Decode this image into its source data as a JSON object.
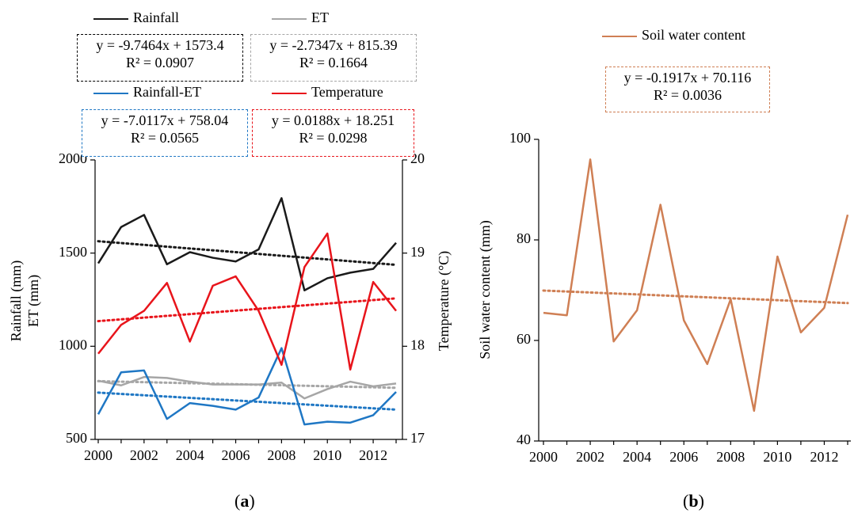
{
  "chart_data": [
    {
      "type": "line",
      "panel_label_open": "(",
      "panel_label_letter": "a",
      "panel_label_close": ")",
      "x": [
        2000,
        2001,
        2002,
        2003,
        2004,
        2005,
        2006,
        2007,
        2008,
        2009,
        2010,
        2011,
        2012,
        2013
      ],
      "xticks": [
        "2000",
        "2002",
        "2004",
        "2006",
        "2008",
        "2010",
        "2012"
      ],
      "xlim": [
        2000,
        2013
      ],
      "ylabel_primary_line1": "Rainfall (mm)",
      "ylabel_primary_line2": "ET (mm)",
      "ylim_primary": [
        500,
        2000
      ],
      "yticks_primary": [
        "500",
        "1000",
        "1500",
        "2000"
      ],
      "ylabel_secondary": "Temperature (°C)",
      "ylim_secondary": [
        17,
        20
      ],
      "yticks_secondary": [
        "17",
        "18",
        "19",
        "20"
      ],
      "legend_placement": "top",
      "grid": false,
      "series": [
        {
          "name": "Rainfall",
          "axis": "primary",
          "color": "#1a1a1a",
          "values": [
            1445,
            1640,
            1705,
            1440,
            1505,
            1475,
            1455,
            1520,
            1795,
            1300,
            1365,
            1395,
            1415,
            1555
          ],
          "trend_equation": "y = -9.7464x + 1573.4",
          "trend_r2": "R² = 0.0907",
          "trend_slope": -9.7464,
          "trend_intercept": 1573.4
        },
        {
          "name": "ET",
          "axis": "primary",
          "color": "#a6a6a6",
          "values": [
            815,
            790,
            835,
            830,
            810,
            795,
            795,
            795,
            805,
            720,
            770,
            810,
            785,
            800
          ],
          "trend_equation": "y = -2.7347x + 815.39",
          "trend_r2": "R² = 0.1664",
          "trend_slope": -2.7347,
          "trend_intercept": 815.39
        },
        {
          "name": "Rainfall-ET",
          "axis": "primary",
          "color": "#1f77c4",
          "values": [
            635,
            860,
            870,
            610,
            695,
            680,
            660,
            725,
            990,
            580,
            595,
            590,
            630,
            755
          ],
          "trend_equation": "y = -7.0117x + 758.04",
          "trend_r2": "R² = 0.0565",
          "trend_slope": -7.0117,
          "trend_intercept": 758.04
        },
        {
          "name": "Temperature",
          "axis": "secondary",
          "color": "#e8141b",
          "values": [
            17.92,
            18.23,
            18.38,
            18.68,
            18.05,
            18.65,
            18.75,
            18.38,
            17.8,
            18.85,
            19.21,
            17.75,
            18.69,
            18.38
          ],
          "trend_equation": "y = 0.0188x + 18.251",
          "trend_r2": "R² = 0.0298",
          "trend_slope": 0.0188,
          "trend_intercept": 18.251
        }
      ]
    },
    {
      "type": "line",
      "panel_label_open": "(",
      "panel_label_letter": "b",
      "panel_label_close": ")",
      "x": [
        2000,
        2001,
        2002,
        2003,
        2004,
        2005,
        2006,
        2007,
        2008,
        2009,
        2010,
        2011,
        2012,
        2013
      ],
      "xticks": [
        "2000",
        "2002",
        "2004",
        "2006",
        "2008",
        "2010",
        "2012"
      ],
      "xlim": [
        2000,
        2013
      ],
      "ylabel": "Soil water content (mm)",
      "ylim": [
        40,
        100
      ],
      "yticks": [
        "40",
        "60",
        "80",
        "100"
      ],
      "legend_placement": "top",
      "grid": false,
      "series": [
        {
          "name": "Soil water content",
          "color": "#cf7f54",
          "values": [
            65.5,
            65.0,
            96.0,
            59.8,
            66.0,
            87.0,
            64.0,
            55.3,
            68.2,
            46.0,
            76.7,
            61.6,
            66.5,
            85.0
          ],
          "trend_equation": "y = -0.1917x + 70.116",
          "trend_r2": "R² = 0.0036",
          "trend_slope": -0.1917,
          "trend_intercept": 70.116
        }
      ]
    }
  ]
}
